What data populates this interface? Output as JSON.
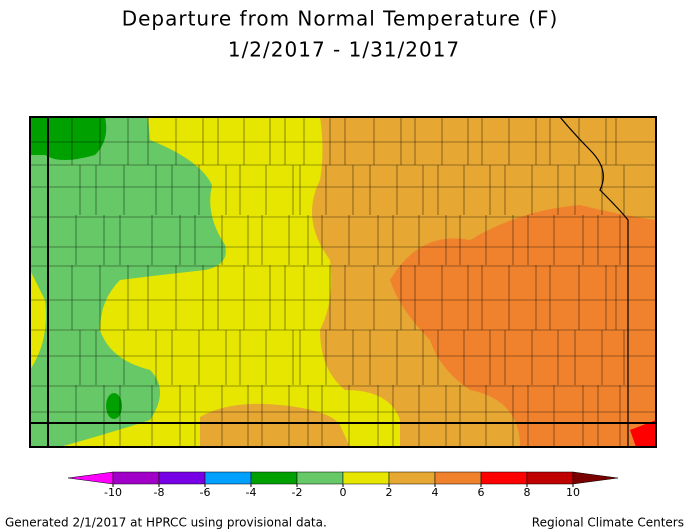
{
  "title": [
    "Departure from Normal Temperature (F)",
    "1/2/2017 - 1/31/2017"
  ],
  "legend": {
    "ticks": [
      -10,
      -8,
      -6,
      -4,
      -2,
      0,
      2,
      4,
      6,
      8,
      10
    ],
    "colors": [
      "#ff00ff",
      "#a000c8",
      "#7800e6",
      "#00a0ff",
      "#00a000",
      "#66c866",
      "#e6e600",
      "#e6a832",
      "#f0822d",
      "#ff0000",
      "#c00000",
      "#7a0000"
    ]
  },
  "footer": {
    "left": "Generated 2/1/2017 at HPRCC using provisional data.",
    "right": "Regional Climate Centers"
  }
}
